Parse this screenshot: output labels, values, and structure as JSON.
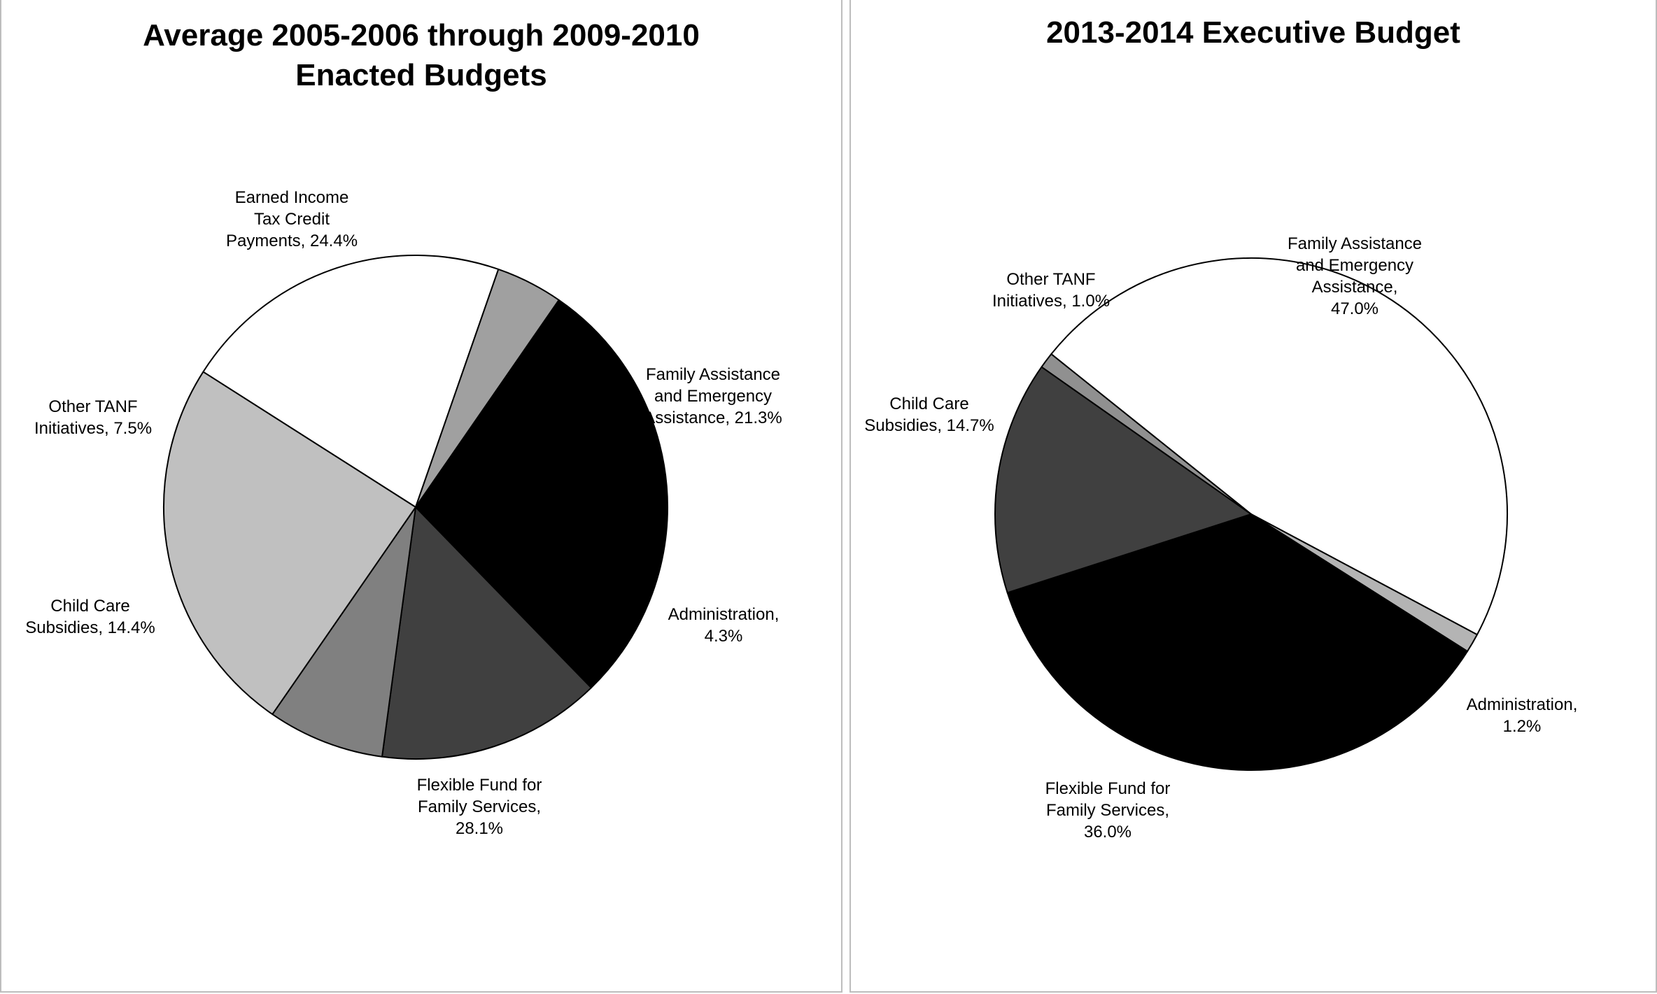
{
  "chart_data": [
    {
      "type": "pie",
      "title": "Average 2005-2006 through 2009-2010 Enacted Budgets",
      "title_lines": [
        "Average 2005-2006 through 2009-2010",
        "Enacted Budgets"
      ],
      "slices": [
        {
          "name": "Family Assistance and Emergency Assistance",
          "value": 21.3,
          "color": "#ffffff",
          "label_lines": [
            "Family Assistance",
            "and Emergency",
            "Assistance, 21.3%"
          ]
        },
        {
          "name": "Administration",
          "value": 4.3,
          "color": "#a0a0a0",
          "label_lines": [
            "Administration,",
            "4.3%"
          ]
        },
        {
          "name": "Flexible Fund for Family Services",
          "value": 28.1,
          "color": "#000000",
          "label_lines": [
            "Flexible Fund for",
            "Family Services,",
            "28.1%"
          ]
        },
        {
          "name": "Child Care Subsidies",
          "value": 14.4,
          "color": "#404040",
          "label_lines": [
            "Child Care",
            "Subsidies, 14.4%"
          ]
        },
        {
          "name": "Other TANF Initiatives",
          "value": 7.5,
          "color": "#808080",
          "label_lines": [
            "Other TANF",
            "Initiatives, 7.5%"
          ]
        },
        {
          "name": "Earned Income Tax Credit Payments",
          "value": 24.4,
          "color": "#c0c0c0",
          "label_lines": [
            "Earned Income",
            "Tax Credit",
            "Payments, 24.4%"
          ]
        }
      ]
    },
    {
      "type": "pie",
      "title": "2013-2014 Executive Budget",
      "title_lines": [
        "2013-2014 Executive Budget"
      ],
      "slices": [
        {
          "name": "Family Assistance and Emergency Assistance",
          "value": 47.0,
          "color": "#ffffff",
          "label_lines": [
            "Family Assistance",
            "and Emergency",
            "Assistance,",
            "47.0%"
          ]
        },
        {
          "name": "Administration",
          "value": 1.2,
          "color": "#b4b4b4",
          "label_lines": [
            "Administration,",
            "1.2%"
          ]
        },
        {
          "name": "Flexible Fund for Family Services",
          "value": 36.0,
          "color": "#000000",
          "label_lines": [
            "Flexible Fund for",
            "Family Services,",
            "36.0%"
          ]
        },
        {
          "name": "Child Care Subsidies",
          "value": 14.7,
          "color": "#404040",
          "label_lines": [
            "Child Care",
            "Subsidies, 14.7%"
          ]
        },
        {
          "name": "Other TANF Initiatives",
          "value": 1.0,
          "color": "#909090",
          "label_lines": [
            "Other TANF",
            "Initiatives, 1.0%"
          ]
        }
      ]
    }
  ]
}
